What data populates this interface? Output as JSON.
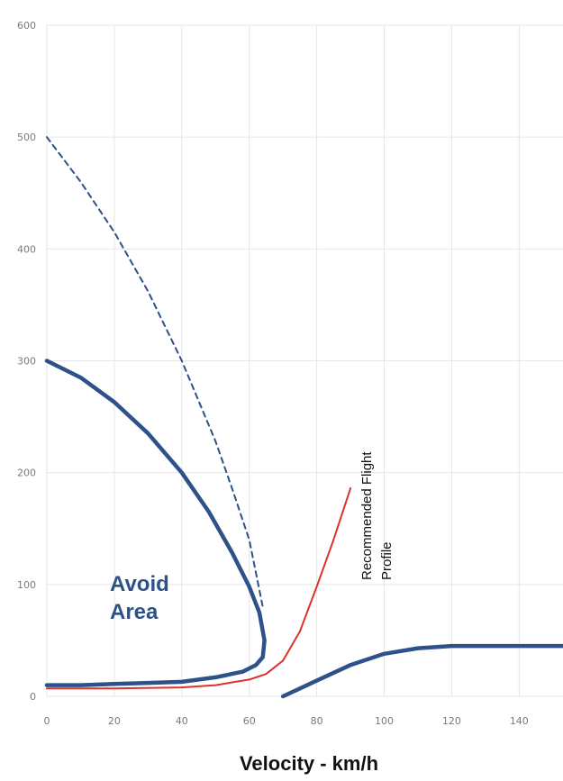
{
  "chart_data": {
    "type": "line",
    "xlabel": "Velocity - km/h",
    "ylabel": "",
    "xlim": [
      0,
      153
    ],
    "ylim": [
      0,
      600
    ],
    "x_ticks": [
      "0",
      "20",
      "40",
      "60",
      "80",
      "100",
      "120",
      "140"
    ],
    "y_ticks": [
      "0",
      "100",
      "200",
      "300",
      "400",
      "500",
      "600"
    ],
    "grid": true,
    "annotations": {
      "avoid_line1": "Avoid",
      "avoid_line2": "Area",
      "profile_line1": "Recommended Flight",
      "profile_line2": "Profile"
    },
    "colors": {
      "avoid": "#2e5189",
      "profile": "#e0302a",
      "grid": "#e6e6e6"
    },
    "series": [
      {
        "style": "solid-thick",
        "x": [
          0,
          10,
          20,
          30,
          40,
          48,
          55,
          60,
          63,
          64.5,
          64,
          62,
          58,
          50,
          40,
          30,
          20,
          10,
          0
        ],
        "y": [
          300,
          285,
          263,
          235,
          200,
          165,
          128,
          98,
          75,
          50,
          35,
          28,
          22,
          17,
          13,
          12,
          11,
          10,
          10
        ]
      },
      {
        "style": "dashed",
        "x": [
          0,
          10,
          20,
          30,
          40,
          50,
          55,
          60,
          64
        ],
        "y": [
          500,
          460,
          415,
          362,
          300,
          228,
          185,
          140,
          80
        ]
      },
      {
        "style": "solid-thin-red",
        "x": [
          0,
          20,
          40,
          50,
          60,
          65,
          70,
          75,
          80,
          85,
          90
        ],
        "y": [
          7,
          7,
          8,
          10,
          15,
          20,
          32,
          58,
          98,
          140,
          186
        ]
      },
      {
        "style": "solid-thick",
        "x": [
          70,
          80,
          90,
          100,
          110,
          120,
          130,
          140,
          153
        ],
        "y": [
          0,
          14,
          28,
          38,
          43,
          45,
          45,
          45,
          45
        ]
      }
    ]
  }
}
